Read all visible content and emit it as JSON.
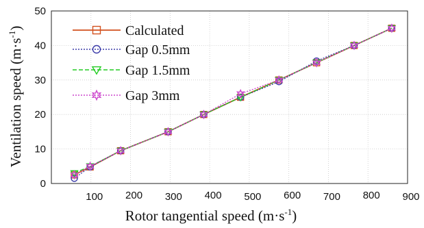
{
  "chart_data": {
    "type": "line",
    "xlabel": "Rotor tangential speed (m·s",
    "xlabel_sup": "-1",
    "xlabel_end": ")",
    "ylabel": "Ventilation speed (m·s",
    "ylabel_sup": "-1",
    "ylabel_end": ")",
    "xlim": [
      0,
      900
    ],
    "ylim": [
      0,
      50
    ],
    "x_ticks": [
      0,
      100,
      200,
      300,
      400,
      500,
      600,
      700,
      800,
      900
    ],
    "y_ticks": [
      0,
      10,
      20,
      30,
      40,
      50
    ],
    "x_tick_labels": [
      "100",
      "200",
      "300",
      "400",
      "500",
      "600",
      "700",
      "800",
      "900"
    ],
    "y_tick_labels": [
      "0",
      "10",
      "20",
      "30",
      "40",
      "50"
    ],
    "grid": true,
    "legend_position": "top-left",
    "series": [
      {
        "name": "Calculated",
        "color": "#d2501e",
        "marker": "square",
        "dash": "",
        "x": [
          58,
          98,
          175,
          295,
          385,
          478,
          575,
          670,
          765,
          860
        ],
        "y": [
          2.5,
          4.8,
          9.5,
          15,
          20,
          25,
          30,
          35,
          40,
          45
        ]
      },
      {
        "name": "Gap 0.5mm",
        "color": "#3a3aa8",
        "marker": "circle",
        "dash": "2,2",
        "x": [
          58,
          98,
          175,
          295,
          385,
          478,
          575,
          670,
          765,
          860
        ],
        "y": [
          1.5,
          4.8,
          9.5,
          15,
          20,
          25,
          29.5,
          35.5,
          40,
          45
        ]
      },
      {
        "name": "Gap 1.5mm",
        "color": "#22cc22",
        "marker": "triangle-down",
        "dash": "6,3",
        "x": [
          58,
          98,
          175,
          295,
          385,
          478,
          575,
          670,
          765,
          860
        ],
        "y": [
          3,
          5,
          9.5,
          15,
          20,
          25,
          30,
          35,
          40,
          45
        ]
      },
      {
        "name": "Gap 3mm",
        "color": "#cc44cc",
        "marker": "star",
        "dash": "2,2",
        "x": [
          58,
          98,
          175,
          295,
          385,
          478,
          575,
          670,
          765,
          860
        ],
        "y": [
          2.5,
          5,
          9.5,
          15,
          20,
          26,
          30,
          35,
          40,
          45
        ]
      }
    ]
  }
}
